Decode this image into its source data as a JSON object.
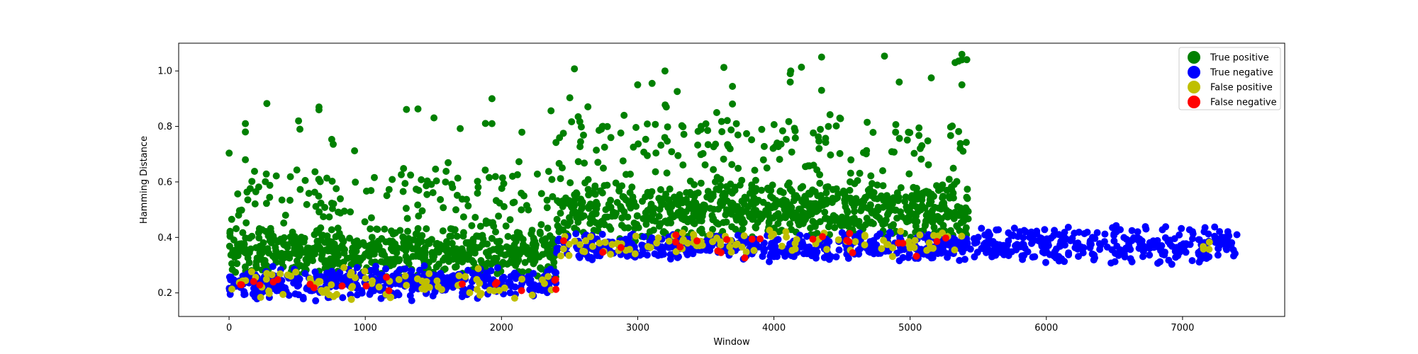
{
  "chart_data": {
    "type": "scatter",
    "title": "",
    "xlabel": "Window",
    "ylabel": "Hamming Distance",
    "xlim": [
      -370,
      7750
    ],
    "ylim": [
      0.115,
      1.1
    ],
    "xticks": [
      0,
      1000,
      2000,
      3000,
      4000,
      5000,
      6000,
      7000
    ],
    "yticks": [
      0.2,
      0.4,
      0.6,
      0.8,
      1.0
    ],
    "ytick_labels": [
      "0.2",
      "0.4",
      "0.6",
      "0.8",
      "1.0"
    ],
    "grid": false,
    "legend_position": "top-right",
    "segments": [
      {
        "x": [
          0,
          2400
        ],
        "y_range": [
          0.15,
          0.46
        ]
      },
      {
        "x": [
          2400,
          5430
        ],
        "y_range": [
          0.3,
          0.6
        ]
      },
      {
        "x": [
          5430,
          7400
        ],
        "y_range": [
          0.3,
          0.45
        ]
      }
    ],
    "series": [
      {
        "name": "True positive",
        "color": "#008000",
        "summary_by_window_range": [
          {
            "x": [
              0,
              2400
            ],
            "typical_y": [
              0.25,
              0.45
            ],
            "max_y": 0.9
          },
          {
            "x": [
              2400,
              5430
            ],
            "typical_y": [
              0.38,
              0.62
            ],
            "max_y": 1.06
          }
        ],
        "outliers": [
          {
            "x": 120,
            "y": 0.81
          },
          {
            "x": 120,
            "y": 0.78
          },
          {
            "x": 120,
            "y": 0.68
          },
          {
            "x": 510,
            "y": 0.82
          },
          {
            "x": 520,
            "y": 0.79
          },
          {
            "x": 660,
            "y": 0.87
          },
          {
            "x": 660,
            "y": 0.86
          },
          {
            "x": 1930,
            "y": 0.9
          },
          {
            "x": 1930,
            "y": 0.81
          },
          {
            "x": 2900,
            "y": 0.84
          },
          {
            "x": 3000,
            "y": 0.95
          },
          {
            "x": 3200,
            "y": 1.0
          },
          {
            "x": 3210,
            "y": 0.87
          },
          {
            "x": 3580,
            "y": 0.85
          },
          {
            "x": 4120,
            "y": 0.99
          },
          {
            "x": 4120,
            "y": 0.96
          },
          {
            "x": 4350,
            "y": 1.05
          },
          {
            "x": 4350,
            "y": 0.93
          },
          {
            "x": 4920,
            "y": 0.96
          },
          {
            "x": 5330,
            "y": 1.03
          },
          {
            "x": 5380,
            "y": 1.06
          },
          {
            "x": 5380,
            "y": 1.04
          },
          {
            "x": 5380,
            "y": 0.95
          }
        ]
      },
      {
        "name": "True negative",
        "color": "#0000ff",
        "summary_by_window_range": [
          {
            "x": [
              0,
              2400
            ],
            "typical_y": [
              0.17,
              0.3
            ]
          },
          {
            "x": [
              2400,
              5430
            ],
            "typical_y": [
              0.31,
              0.42
            ]
          },
          {
            "x": [
              5430,
              7400
            ],
            "typical_y": [
              0.3,
              0.45
            ]
          }
        ]
      },
      {
        "name": "False positive",
        "color": "#bfbf00",
        "summary_by_window_range": [
          {
            "x": [
              0,
              2400
            ],
            "typical_y": [
              0.17,
              0.3
            ]
          },
          {
            "x": [
              2400,
              5430
            ],
            "typical_y": [
              0.33,
              0.43
            ]
          },
          {
            "x": [
              7100,
              7200
            ],
            "typical_y": [
              0.33,
              0.4
            ]
          }
        ]
      },
      {
        "name": "False negative",
        "color": "#ff0000",
        "summary_by_window_range": [
          {
            "x": [
              0,
              2400
            ],
            "typical_y": [
              0.2,
              0.26
            ]
          },
          {
            "x": [
              2400,
              5430
            ],
            "typical_y": [
              0.32,
              0.42
            ]
          }
        ]
      }
    ]
  }
}
